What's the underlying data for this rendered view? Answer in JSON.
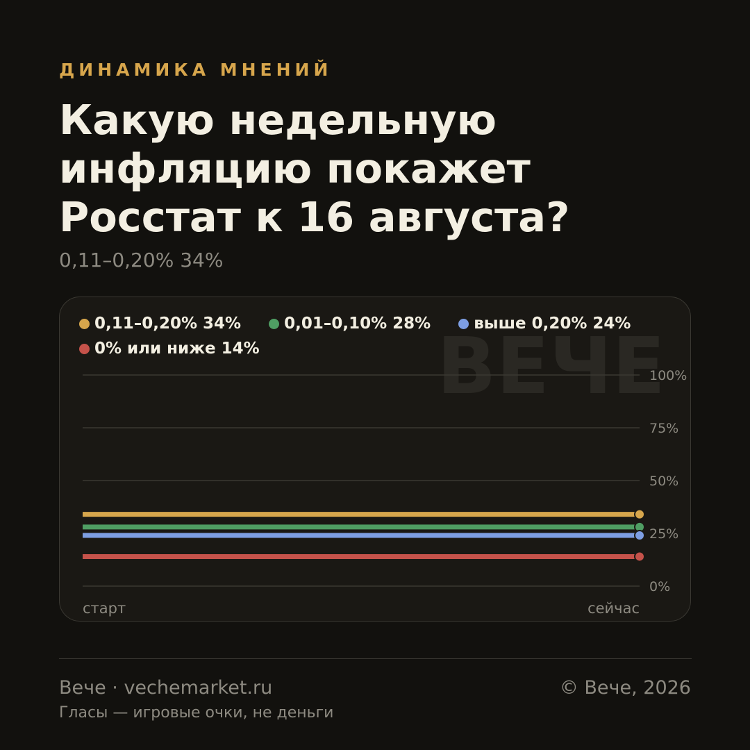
{
  "header": {
    "kicker": "ДИНАМИКА МНЕНИЙ",
    "title": "Какую недельную инфляцию покажет Росстат к 16 августа?",
    "subtitle": "0,11–0,20% 34%"
  },
  "watermark": "ВЕЧЕ",
  "chart_data": {
    "type": "line",
    "x": [
      "старт",
      "сейчас"
    ],
    "xlabels": [
      "старт",
      "сейчас"
    ],
    "ylim": [
      0,
      100
    ],
    "yticks": [
      "100%",
      "75%",
      "50%",
      "25%",
      "0%"
    ],
    "ytick_values": [
      100,
      75,
      50,
      25,
      0
    ],
    "grid": true,
    "legend_position": "top-left",
    "series": [
      {
        "name": "0,11–0,20% 34%",
        "values": [
          34,
          34
        ],
        "color": "#d7a64c"
      },
      {
        "name": "0,01–0,10% 28%",
        "values": [
          28,
          28
        ],
        "color": "#4f9e63"
      },
      {
        "name": "выше 0,20% 24%",
        "values": [
          24,
          24
        ],
        "color": "#7d9ee3"
      },
      {
        "name": "0% или ниже 14%",
        "values": [
          14,
          14
        ],
        "color": "#c5524a"
      }
    ]
  },
  "footer": {
    "site": "Вече · vechemarket.ru",
    "copyright": "© Вече, 2026",
    "note": "Гласы — игровые очки, не деньги"
  }
}
